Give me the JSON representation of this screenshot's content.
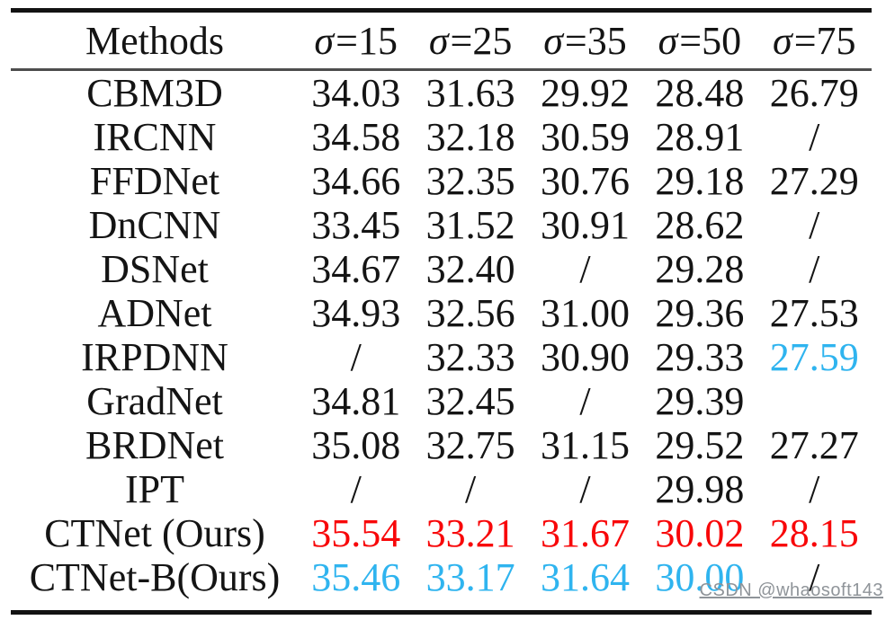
{
  "palette": {
    "black": "#141414",
    "red": "#f80709",
    "cyan": "#2fb4ef",
    "watermark_gray": "#8f9499",
    "rule_dark": "#121212",
    "rule_mid": "#4d4d4d"
  },
  "table": {
    "method_header": "Methods",
    "sigma_headers": [
      {
        "sigma": "σ",
        "rest": "=15"
      },
      {
        "sigma": "σ",
        "rest": "=25"
      },
      {
        "sigma": "σ",
        "rest": "=35"
      },
      {
        "sigma": "σ",
        "rest": "=50"
      },
      {
        "sigma": "σ",
        "rest": "=75"
      }
    ],
    "rows": [
      {
        "method": "CBM3D",
        "cells": [
          {
            "text": "34.03",
            "color": "black"
          },
          {
            "text": "31.63",
            "color": "black"
          },
          {
            "text": "29.92",
            "color": "black"
          },
          {
            "text": "28.48",
            "color": "black"
          },
          {
            "text": "26.79",
            "color": "black"
          }
        ]
      },
      {
        "method": "IRCNN",
        "cells": [
          {
            "text": "34.58",
            "color": "black"
          },
          {
            "text": "32.18",
            "color": "black"
          },
          {
            "text": "30.59",
            "color": "black"
          },
          {
            "text": "28.91",
            "color": "black"
          },
          {
            "text": "/",
            "color": "black"
          }
        ]
      },
      {
        "method": "FFDNet",
        "cells": [
          {
            "text": "34.66",
            "color": "black"
          },
          {
            "text": "32.35",
            "color": "black"
          },
          {
            "text": "30.76",
            "color": "black"
          },
          {
            "text": "29.18",
            "color": "black"
          },
          {
            "text": "27.29",
            "color": "black"
          }
        ]
      },
      {
        "method": "DnCNN",
        "cells": [
          {
            "text": "33.45",
            "color": "black"
          },
          {
            "text": "31.52",
            "color": "black"
          },
          {
            "text": "30.91",
            "color": "black"
          },
          {
            "text": "28.62",
            "color": "black"
          },
          {
            "text": "/",
            "color": "black"
          }
        ]
      },
      {
        "method": "DSNet",
        "cells": [
          {
            "text": "34.67",
            "color": "black"
          },
          {
            "text": "32.40",
            "color": "black"
          },
          {
            "text": "/",
            "color": "black"
          },
          {
            "text": "29.28",
            "color": "black"
          },
          {
            "text": "/",
            "color": "black"
          }
        ]
      },
      {
        "method": "ADNet",
        "cells": [
          {
            "text": "34.93",
            "color": "black"
          },
          {
            "text": "32.56",
            "color": "black"
          },
          {
            "text": "31.00",
            "color": "black"
          },
          {
            "text": "29.36",
            "color": "black"
          },
          {
            "text": "27.53",
            "color": "black"
          }
        ]
      },
      {
        "method": "IRPDNN",
        "cells": [
          {
            "text": "/",
            "color": "black"
          },
          {
            "text": "32.33",
            "color": "black"
          },
          {
            "text": "30.90",
            "color": "black"
          },
          {
            "text": "29.33",
            "color": "black"
          },
          {
            "text": "27.59",
            "color": "cyan"
          }
        ]
      },
      {
        "method": "GradNet",
        "cells": [
          {
            "text": "34.81",
            "color": "black"
          },
          {
            "text": "32.45",
            "color": "black"
          },
          {
            "text": "/",
            "color": "black"
          },
          {
            "text": "29.39",
            "color": "black"
          },
          {
            "text": "",
            "color": "black"
          }
        ]
      },
      {
        "method": "BRDNet",
        "cells": [
          {
            "text": "35.08",
            "color": "black"
          },
          {
            "text": "32.75",
            "color": "black"
          },
          {
            "text": "31.15",
            "color": "black"
          },
          {
            "text": "29.52",
            "color": "black"
          },
          {
            "text": "27.27",
            "color": "black"
          }
        ]
      },
      {
        "method": "IPT",
        "cells": [
          {
            "text": "/",
            "color": "black"
          },
          {
            "text": "/",
            "color": "black"
          },
          {
            "text": "/",
            "color": "black"
          },
          {
            "text": "29.98",
            "color": "black"
          },
          {
            "text": "/",
            "color": "black"
          }
        ]
      },
      {
        "method": "CTNet (Ours)",
        "cells": [
          {
            "text": "35.54",
            "color": "red"
          },
          {
            "text": "33.21",
            "color": "red"
          },
          {
            "text": "31.67",
            "color": "red"
          },
          {
            "text": "30.02",
            "color": "red"
          },
          {
            "text": "28.15",
            "color": "red"
          }
        ]
      },
      {
        "method": "CTNet-B(Ours)",
        "cells": [
          {
            "text": "35.46",
            "color": "cyan"
          },
          {
            "text": "33.17",
            "color": "cyan"
          },
          {
            "text": "31.64",
            "color": "cyan"
          },
          {
            "text": "30.00",
            "color": "cyan"
          },
          {
            "text": "/",
            "color": "black"
          }
        ]
      }
    ]
  },
  "watermark": {
    "text": "CSDN @whaosoft143"
  }
}
